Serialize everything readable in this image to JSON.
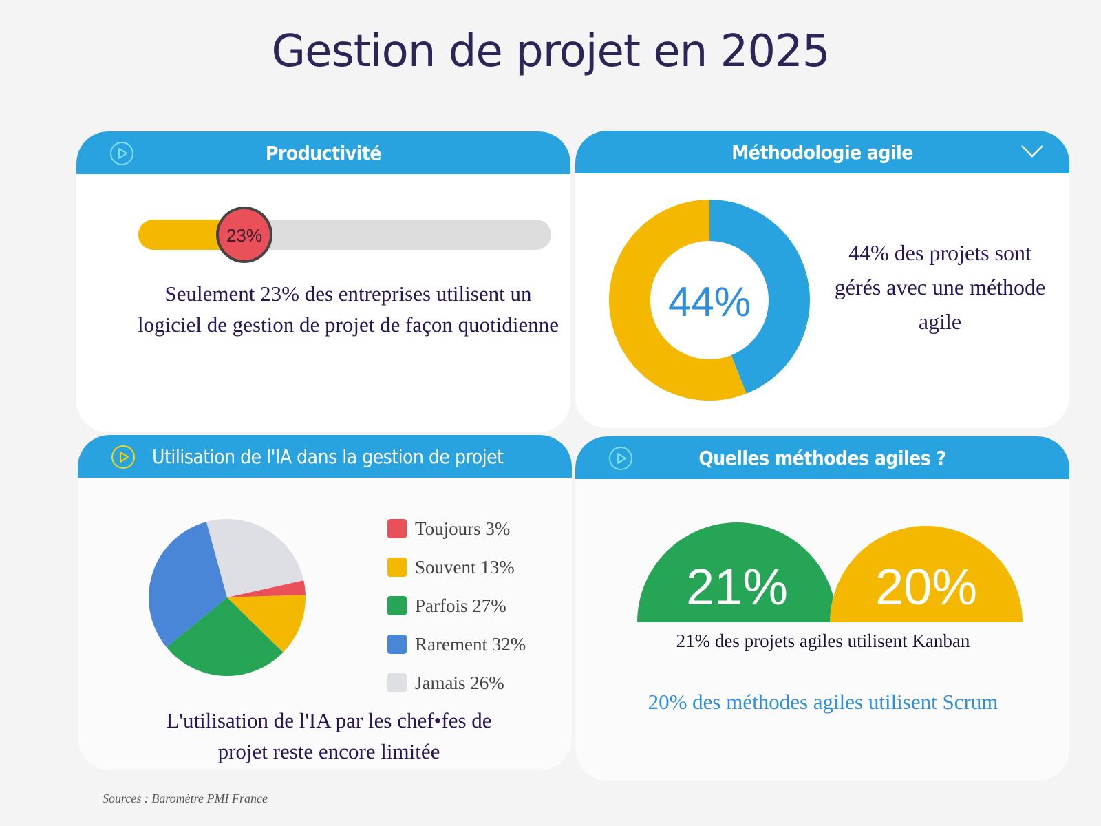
{
  "title": "Gestion de projet en 2025",
  "cards": {
    "productivite": {
      "header": "Productivité",
      "progress_label": "23%",
      "description": "Seulement 23% des entreprises utilisent un logiciel de gestion de projet de façon quotidienne"
    },
    "agile": {
      "header": "Méthodologie agile",
      "center_label": "44%",
      "description": "44% des projets sont gérés avec une méthode agile"
    },
    "ia": {
      "header": "Utilisation de l'IA dans la gestion de projet",
      "description": "L'utilisation de l'IA par les chef•fes de projet reste encore limitée"
    },
    "methodes": {
      "header": "Quelles méthodes agiles ?",
      "kanban_label": "21%",
      "scrum_label": "20%",
      "kanban_text": "21% des projets agiles utilisent Kanban",
      "scrum_text": "20% des méthodes agiles utilisent Scrum"
    }
  },
  "source": "Sources : Baromètre PMI France",
  "colors": {
    "header": "#29a3df",
    "yellow": "#f4b800",
    "red": "#e9505a",
    "green": "#27a556",
    "blue": "#4a86d8",
    "gray": "#dedfe5",
    "track": "#dcdcdc"
  },
  "chart_data": [
    {
      "type": "bar",
      "title": "Productivité",
      "values": [
        23
      ],
      "ylim": [
        0,
        100
      ]
    },
    {
      "type": "pie",
      "title": "Méthodologie agile",
      "values": [
        44,
        56
      ],
      "colors": [
        "#29a3df",
        "#f4b800"
      ]
    },
    {
      "type": "pie",
      "title": "Utilisation de l'IA dans la gestion de projet",
      "categories": [
        "Toujours",
        "Souvent",
        "Parfois",
        "Rarement",
        "Jamais"
      ],
      "values": [
        3,
        13,
        27,
        32,
        26
      ],
      "legend": [
        "Toujours 3%",
        "Souvent 13%",
        "Parfois 27%",
        "Rarement 32%",
        "Jamais 26%"
      ],
      "colors": [
        "#e9505a",
        "#f4b800",
        "#27a556",
        "#4a86d8",
        "#dedfe5"
      ],
      "legend_position": "right"
    },
    {
      "type": "bar",
      "title": "Quelles méthodes agiles ?",
      "categories": [
        "Kanban",
        "Scrum"
      ],
      "values": [
        21,
        20
      ],
      "colors": [
        "#27a556",
        "#f4b800"
      ]
    }
  ]
}
